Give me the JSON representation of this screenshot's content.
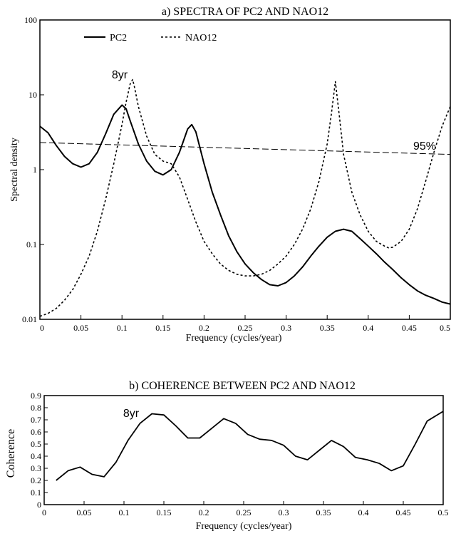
{
  "chart_data": [
    {
      "type": "line",
      "title": "a) SPECTRA OF PC2 AND NAO12",
      "xlabel": "Frequency (cycles/year)",
      "ylabel": "Spectral density",
      "xlim": [
        0,
        0.5
      ],
      "ylim": [
        0.01,
        100
      ],
      "yscale": "log",
      "grid": false,
      "legend_position": "top-left",
      "x_ticks": [
        "0",
        "0.05",
        "0.1",
        "0.15",
        "0.2",
        "0.25",
        "0.3",
        "0.35",
        "0.4",
        "0.45",
        "0.5"
      ],
      "y_ticks": [
        "0.01",
        "0.1",
        "1",
        "10",
        "100"
      ],
      "annotations": [
        "8yr",
        "95%"
      ],
      "series": [
        {
          "name": "PC2",
          "style": "solid",
          "x": [
            0,
            0.01,
            0.02,
            0.03,
            0.04,
            0.05,
            0.06,
            0.07,
            0.08,
            0.09,
            0.1,
            0.105,
            0.11,
            0.12,
            0.13,
            0.14,
            0.15,
            0.16,
            0.17,
            0.18,
            0.185,
            0.19,
            0.2,
            0.21,
            0.22,
            0.23,
            0.24,
            0.25,
            0.26,
            0.27,
            0.28,
            0.29,
            0.3,
            0.31,
            0.32,
            0.33,
            0.34,
            0.35,
            0.36,
            0.37,
            0.38,
            0.39,
            0.4,
            0.41,
            0.42,
            0.43,
            0.44,
            0.45,
            0.46,
            0.47,
            0.48,
            0.49,
            0.5
          ],
          "values": [
            3.8,
            3.1,
            2.1,
            1.5,
            1.2,
            1.08,
            1.2,
            1.7,
            3.0,
            5.5,
            7.3,
            6.5,
            4.5,
            2.2,
            1.3,
            0.95,
            0.85,
            1.0,
            1.7,
            3.5,
            4.0,
            3.2,
            1.2,
            0.5,
            0.25,
            0.13,
            0.08,
            0.055,
            0.042,
            0.034,
            0.029,
            0.028,
            0.031,
            0.038,
            0.05,
            0.07,
            0.095,
            0.125,
            0.15,
            0.16,
            0.15,
            0.12,
            0.095,
            0.075,
            0.058,
            0.046,
            0.036,
            0.029,
            0.024,
            0.021,
            0.019,
            0.017,
            0.016
          ]
        },
        {
          "name": "NAO12",
          "style": "dashed",
          "x": [
            0,
            0.01,
            0.02,
            0.03,
            0.04,
            0.05,
            0.06,
            0.07,
            0.08,
            0.09,
            0.1,
            0.105,
            0.11,
            0.113,
            0.115,
            0.12,
            0.13,
            0.14,
            0.15,
            0.16,
            0.17,
            0.18,
            0.19,
            0.2,
            0.21,
            0.22,
            0.23,
            0.24,
            0.25,
            0.26,
            0.27,
            0.28,
            0.29,
            0.3,
            0.31,
            0.32,
            0.33,
            0.34,
            0.35,
            0.355,
            0.36,
            0.365,
            0.37,
            0.38,
            0.39,
            0.4,
            0.41,
            0.42,
            0.425,
            0.43,
            0.44,
            0.45,
            0.46,
            0.47,
            0.48,
            0.49,
            0.5
          ],
          "values": [
            0.011,
            0.012,
            0.014,
            0.018,
            0.025,
            0.04,
            0.07,
            0.15,
            0.4,
            1.2,
            4.0,
            8.0,
            14.0,
            16.0,
            13.0,
            7.0,
            2.8,
            1.6,
            1.3,
            1.2,
            0.8,
            0.4,
            0.2,
            0.11,
            0.075,
            0.055,
            0.045,
            0.04,
            0.038,
            0.038,
            0.04,
            0.045,
            0.055,
            0.07,
            0.1,
            0.16,
            0.3,
            0.7,
            2.2,
            5.5,
            15.0,
            5.0,
            1.6,
            0.5,
            0.25,
            0.15,
            0.11,
            0.095,
            0.09,
            0.092,
            0.11,
            0.16,
            0.3,
            0.7,
            1.7,
            3.8,
            7.0
          ]
        },
        {
          "name": "95%",
          "style": "long-dash",
          "x": [
            0,
            0.5
          ],
          "values": [
            2.3,
            1.6
          ]
        }
      ]
    },
    {
      "type": "line",
      "title": "b) COHERENCE BETWEEN PC2 AND NAO12",
      "xlabel": "Frequency (cycles/year)",
      "ylabel": "Coherence",
      "xlim": [
        0,
        0.5
      ],
      "ylim": [
        0,
        0.9
      ],
      "grid": false,
      "x_ticks": [
        "0",
        "0.05",
        "0.1",
        "0.15",
        "0.2",
        "0.25",
        "0.3",
        "0.35",
        "0.4",
        "0.45",
        "0.5"
      ],
      "y_ticks": [
        "0",
        "0.1",
        "0.2",
        "0.3",
        "0.4",
        "0.5",
        "0.6",
        "0.7",
        "0.8",
        "0.9"
      ],
      "annotations": [
        "8yr"
      ],
      "series": [
        {
          "style": "solid",
          "x": [
            0.015,
            0.03,
            0.045,
            0.06,
            0.075,
            0.09,
            0.105,
            0.12,
            0.135,
            0.15,
            0.165,
            0.18,
            0.195,
            0.21,
            0.225,
            0.24,
            0.255,
            0.27,
            0.285,
            0.3,
            0.315,
            0.33,
            0.345,
            0.36,
            0.375,
            0.39,
            0.405,
            0.42,
            0.435,
            0.45,
            0.465,
            0.48,
            0.5
          ],
          "values": [
            0.2,
            0.28,
            0.31,
            0.25,
            0.23,
            0.35,
            0.53,
            0.67,
            0.75,
            0.74,
            0.65,
            0.55,
            0.55,
            0.63,
            0.71,
            0.67,
            0.58,
            0.54,
            0.53,
            0.49,
            0.4,
            0.37,
            0.45,
            0.53,
            0.48,
            0.39,
            0.37,
            0.34,
            0.28,
            0.32,
            0.5,
            0.69,
            0.77
          ]
        }
      ]
    }
  ]
}
